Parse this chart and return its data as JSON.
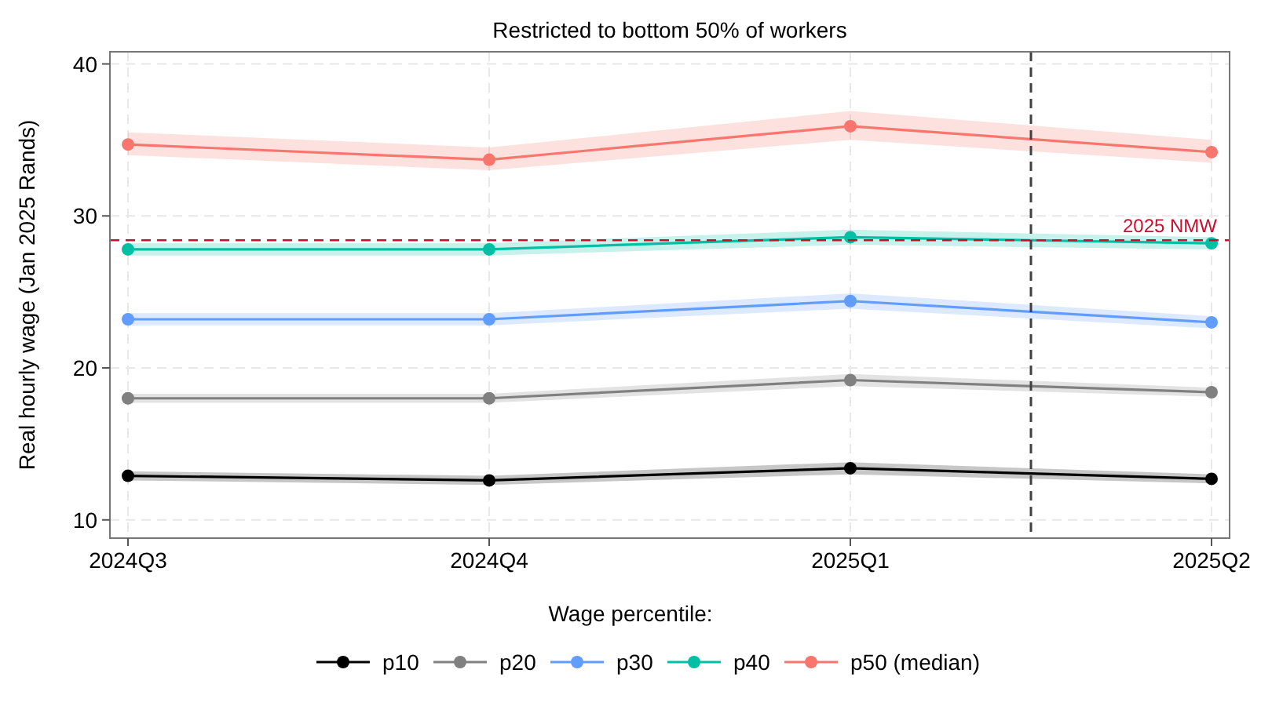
{
  "chart_data": {
    "type": "line",
    "title": "Restricted to bottom 50% of workers",
    "ylabel": "Real hourly wage (Jan 2025 Rands)",
    "legend_title": "Wage percentile:",
    "categories": [
      "2024Q3",
      "2024Q4",
      "2025Q1",
      "2025Q2"
    ],
    "ylim": [
      8.8,
      40.8
    ],
    "yticks": [
      10,
      20,
      30,
      40
    ],
    "grid": true,
    "legend": "bottom",
    "marker": "circle",
    "line_style": "solid",
    "series": [
      {
        "name": "p10",
        "color": "#000000",
        "values": [
          12.9,
          12.6,
          13.4,
          12.7
        ],
        "lower": [
          12.6,
          12.3,
          13.0,
          12.4
        ],
        "upper": [
          13.2,
          12.9,
          13.8,
          13.0
        ]
      },
      {
        "name": "p20",
        "color": "#808080",
        "values": [
          18.0,
          18.0,
          19.2,
          18.4
        ],
        "lower": [
          17.7,
          17.7,
          18.8,
          18.1
        ],
        "upper": [
          18.3,
          18.3,
          19.6,
          18.7
        ]
      },
      {
        "name": "p30",
        "color": "#619cff",
        "values": [
          23.2,
          23.2,
          24.4,
          23.0
        ],
        "lower": [
          22.8,
          22.8,
          23.9,
          22.6
        ],
        "upper": [
          23.6,
          23.6,
          24.9,
          23.4
        ]
      },
      {
        "name": "p40",
        "color": "#00bfa5",
        "values": [
          27.8,
          27.8,
          28.6,
          28.2
        ],
        "lower": [
          27.4,
          27.4,
          28.1,
          27.8
        ],
        "upper": [
          28.2,
          28.2,
          29.1,
          28.6
        ]
      },
      {
        "name": "p50 (median)",
        "color": "#f8766d",
        "values": [
          34.7,
          33.7,
          35.9,
          34.2
        ],
        "lower": [
          34.0,
          33.0,
          35.0,
          33.5
        ],
        "upper": [
          35.5,
          34.5,
          36.9,
          35.0
        ]
      }
    ],
    "ref_lines": [
      {
        "axis": "y",
        "value": 28.4,
        "label": "2025 NMW",
        "color": "#c8102e",
        "line_style": "dashed"
      }
    ]
  }
}
